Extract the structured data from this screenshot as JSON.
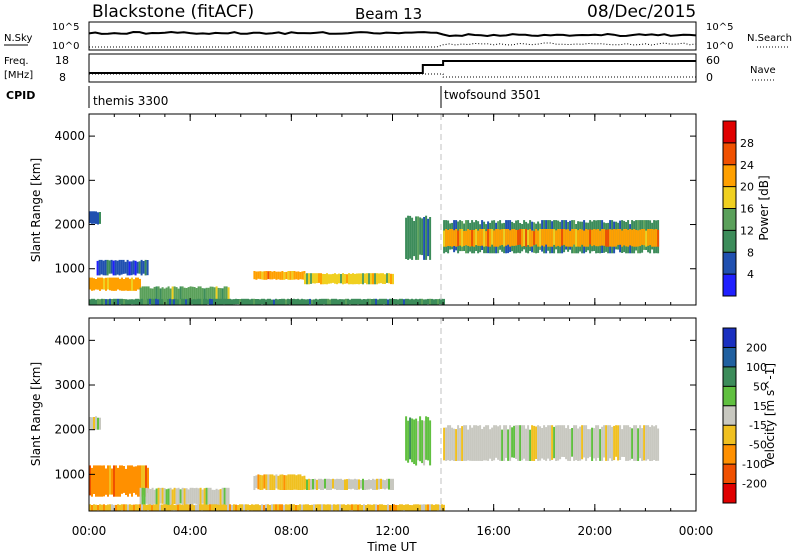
{
  "header": {
    "station": "Blackstone (fitACF)",
    "beam": "Beam 13",
    "date": "08/Dec/2015"
  },
  "strip": {
    "nsky_label": "N.Sky",
    "nsearch_label": "N.Search",
    "tick_hi": "10^5",
    "tick_lo": "10^0",
    "freq_label": "Freq.",
    "freq_unit": "[MHz]",
    "freq_ticks": [
      "18",
      "8"
    ],
    "nave_label": "Nave",
    "nave_ticks": [
      "60",
      "0"
    ],
    "cpid_label": "CPID",
    "cpid_modes": [
      {
        "name": "themis 3300",
        "start_hour": 0
      },
      {
        "name": "twofsound 3501",
        "start_hour": 14
      }
    ]
  },
  "colors": {
    "power": [
      "#2020ff",
      "#2050b0",
      "#3c8c5a",
      "#5aa05a",
      "#f0d020",
      "#ffa000",
      "#f05000",
      "#e00000"
    ],
    "velocity": [
      "#1a30c0",
      "#2060a0",
      "#3c8c5a",
      "#60c040",
      "#c8c8c0",
      "#f0c020",
      "#ff9000",
      "#f05000",
      "#e00000"
    ]
  },
  "chart_data": [
    {
      "type": "heatmap",
      "name": "power",
      "ylabel": "Slant Range [km]",
      "xlabel": "",
      "xlim": [
        "00:00",
        "24:00"
      ],
      "ylim": [
        180,
        4500
      ],
      "yticks": [
        "1000",
        "2000",
        "3000",
        "4000"
      ],
      "colorbar_label": "Power [dB]",
      "colorbar_ticks": [
        "4",
        "8",
        "12",
        "16",
        "20",
        "24",
        "28"
      ],
      "colorbar_range": [
        0,
        32
      ],
      "regions": [
        {
          "t0": 0.0,
          "t1": 0.4,
          "r0": 2000,
          "r1": 2300,
          "level": 1
        },
        {
          "t0": 0.0,
          "t1": 2.0,
          "r0": 500,
          "r1": 800,
          "level": 5
        },
        {
          "t0": 0.3,
          "t1": 2.3,
          "r0": 850,
          "r1": 1200,
          "level": 1
        },
        {
          "t0": 2.0,
          "t1": 5.5,
          "r0": 200,
          "r1": 600,
          "level": 3
        },
        {
          "t0": 6.5,
          "t1": 8.5,
          "r0": 750,
          "r1": 950,
          "level": 5
        },
        {
          "t0": 8.5,
          "t1": 12.0,
          "r0": 650,
          "r1": 900,
          "level": 4
        },
        {
          "t0": 12.5,
          "t1": 13.5,
          "r0": 1200,
          "r1": 2200,
          "level": 2
        },
        {
          "t0": 14.0,
          "t1": 22.5,
          "r0": 1350,
          "r1": 2100,
          "level": 2
        },
        {
          "t0": 14.0,
          "t1": 22.5,
          "r0": 1500,
          "r1": 1900,
          "level": 5
        },
        {
          "t0": 0.0,
          "t1": 14.0,
          "r0": 180,
          "r1": 320,
          "level": 2
        }
      ]
    },
    {
      "type": "heatmap",
      "name": "velocity",
      "ylabel": "Slant Range [km]",
      "xlabel": "Time UT",
      "xlim": [
        "00:00",
        "24:00"
      ],
      "ylim": [
        180,
        4500
      ],
      "xticks": [
        "00:00",
        "04:00",
        "08:00",
        "12:00",
        "16:00",
        "20:00",
        "00:00"
      ],
      "yticks": [
        "1000",
        "2000",
        "3000",
        "4000"
      ],
      "colorbar_label": "Velocity [m s^-1]",
      "colorbar_ticks": [
        "200",
        "100",
        "50",
        "15",
        "-15",
        "-50",
        "-100",
        "-200"
      ],
      "regions": [
        {
          "t0": 0.0,
          "t1": 0.4,
          "r0": 2000,
          "r1": 2300,
          "level": 4
        },
        {
          "t0": 0.0,
          "t1": 2.3,
          "r0": 500,
          "r1": 1200,
          "level": 6
        },
        {
          "t0": 2.0,
          "t1": 5.5,
          "r0": 300,
          "r1": 700,
          "level": 4
        },
        {
          "t0": 6.5,
          "t1": 8.5,
          "r0": 650,
          "r1": 1000,
          "level": 5
        },
        {
          "t0": 8.5,
          "t1": 12.0,
          "r0": 650,
          "r1": 900,
          "level": 4
        },
        {
          "t0": 12.5,
          "t1": 13.5,
          "r0": 1200,
          "r1": 2300,
          "level": 3
        },
        {
          "t0": 14.0,
          "t1": 22.5,
          "r0": 1300,
          "r1": 2100,
          "level": 4
        },
        {
          "t0": 0.0,
          "t1": 14.0,
          "r0": 180,
          "r1": 330,
          "level": 5
        }
      ]
    }
  ]
}
